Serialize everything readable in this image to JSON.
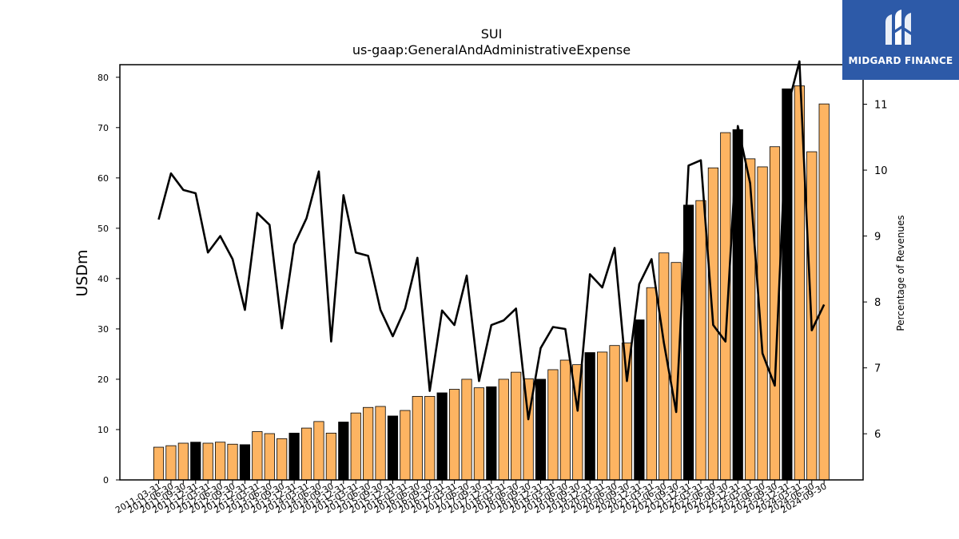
{
  "chart_data": {
    "type": "bar",
    "title": "SUI",
    "subtitle": "us-gaap:GeneralAndAdministrativeExpense",
    "ylabel": "USDm",
    "y2label": "Percentage of Revenues",
    "ylim": [
      0,
      82.5
    ],
    "y2lim": [
      5.3,
      11.6
    ],
    "yticks": [
      0,
      10,
      20,
      30,
      40,
      50,
      60,
      70,
      80
    ],
    "y2ticks": [
      6,
      7,
      8,
      9,
      10,
      11
    ],
    "categories": [
      "2011-03-31",
      "2011-06-30",
      "2011-09-30",
      "2011-12-31",
      "2012-03-31",
      "2012-06-30",
      "2012-09-30",
      "2012-12-31",
      "2013-03-31",
      "2013-06-30",
      "2013-09-30",
      "2013-12-31",
      "2014-03-31",
      "2014-06-30",
      "2014-09-30",
      "2014-12-31",
      "2015-03-31",
      "2015-06-30",
      "2015-09-30",
      "2015-12-31",
      "2016-03-31",
      "2016-06-30",
      "2016-09-30",
      "2016-12-31",
      "2017-03-31",
      "2017-06-30",
      "2017-09-30",
      "2017-12-31",
      "2018-03-31",
      "2018-06-30",
      "2018-09-30",
      "2018-12-31",
      "2019-03-31",
      "2019-06-30",
      "2019-09-30",
      "2019-12-31",
      "2020-03-31",
      "2020-06-30",
      "2020-09-30",
      "2020-12-31",
      "2021-03-31",
      "2021-06-30",
      "2021-09-30",
      "2021-12-31",
      "2022-03-31",
      "2022-06-30",
      "2022-09-30",
      "2022-12-31",
      "2023-03-31",
      "2023-06-30",
      "2023-09-30",
      "2023-12-31",
      "2024-03-31",
      "2024-06-30",
      "2024-09-30"
    ],
    "series": [
      {
        "type": "bar",
        "values": [
          6.5,
          6.8,
          7.3,
          7.5,
          7.3,
          7.5,
          7.1,
          7.0,
          9.6,
          9.2,
          8.2,
          9.3,
          10.3,
          11.6,
          9.3,
          11.5,
          13.3,
          14.4,
          14.6,
          12.7,
          13.8,
          16.6,
          16.6,
          17.3,
          18.0,
          20.0,
          18.3,
          18.5,
          20.0,
          21.4,
          20.1,
          20.0,
          21.9,
          23.8,
          22.9,
          25.3,
          25.4,
          26.7,
          27.2,
          31.8,
          38.2,
          45.1,
          43.2,
          54.6,
          55.5,
          62.0,
          69.0,
          69.6,
          63.8,
          62.2,
          66.2,
          77.7,
          78.3,
          65.2,
          74.7
        ],
        "highlight": [
          false,
          false,
          false,
          true,
          false,
          false,
          false,
          true,
          false,
          false,
          false,
          true,
          false,
          false,
          false,
          true,
          false,
          false,
          false,
          true,
          false,
          false,
          false,
          true,
          false,
          false,
          false,
          true,
          false,
          false,
          false,
          true,
          false,
          false,
          false,
          true,
          false,
          false,
          false,
          true,
          false,
          false,
          false,
          true,
          false,
          false,
          false,
          true,
          false,
          false,
          false,
          true,
          false,
          false,
          false
        ]
      },
      {
        "type": "line",
        "axis": "right",
        "values": [
          9.25,
          9.95,
          9.7,
          9.65,
          8.75,
          9.0,
          8.65,
          7.88,
          9.35,
          9.17,
          7.6,
          8.87,
          9.27,
          9.98,
          7.4,
          9.62,
          8.75,
          8.7,
          7.88,
          7.48,
          7.9,
          8.67,
          6.65,
          7.87,
          7.65,
          8.4,
          6.8,
          7.65,
          7.72,
          7.9,
          6.22,
          7.3,
          7.62,
          7.59,
          6.35,
          8.42,
          8.22,
          8.82,
          6.8,
          8.27,
          8.65,
          7.38,
          6.33,
          10.07,
          10.15,
          7.65,
          7.4,
          10.67,
          9.8,
          7.22,
          6.73,
          10.93,
          11.65,
          7.57,
          7.96
        ]
      }
    ],
    "colors": {
      "bar": "#fdb462",
      "bar_highlight": "#000000",
      "line": "#000000"
    }
  },
  "logo": {
    "text": "MIDGARD FINANCE"
  }
}
